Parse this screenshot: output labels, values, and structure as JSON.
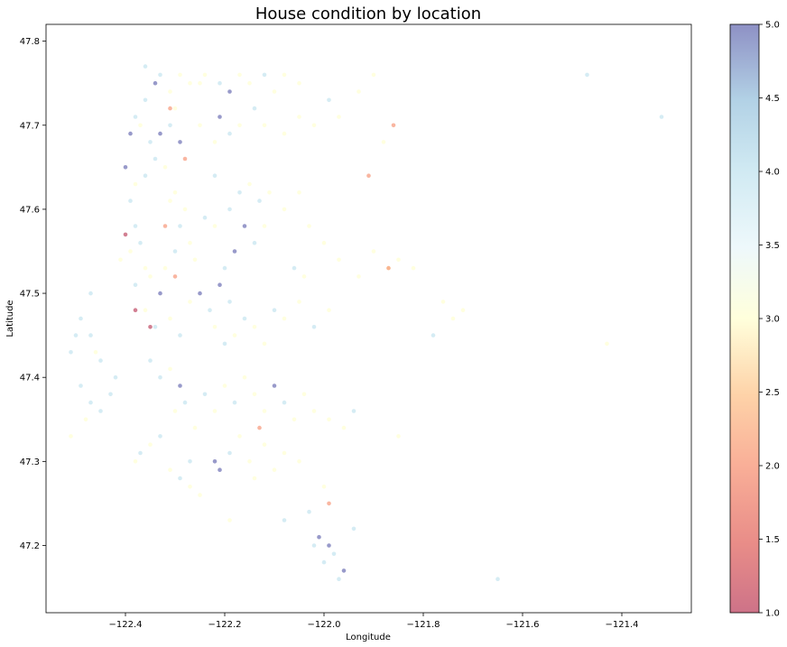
{
  "chart_data": {
    "type": "scatter",
    "title": "House condition by location",
    "xlabel": "Longitude",
    "ylabel": "Latitude",
    "xlim": [
      -122.56,
      -121.26
    ],
    "ylim": [
      47.12,
      47.82
    ],
    "xticks": [
      -122.4,
      -122.2,
      -122.0,
      -121.8,
      -121.6,
      -121.4
    ],
    "xtick_labels": [
      "−122.4",
      "−122.2",
      "−122.0",
      "−121.8",
      "−121.6",
      "−121.4"
    ],
    "yticks": [
      47.2,
      47.3,
      47.4,
      47.5,
      47.6,
      47.7,
      47.8
    ],
    "ytick_labels": [
      "47.2",
      "47.3",
      "47.4",
      "47.5",
      "47.6",
      "47.7",
      "47.8"
    ],
    "color_variable_range": [
      1.0,
      5.0
    ],
    "colormap": "RdYlBu",
    "colorbar": {
      "ticks": [
        1.0,
        1.5,
        2.0,
        2.5,
        3.0,
        3.5,
        4.0,
        4.5,
        5.0
      ],
      "tick_labels": [
        "1.0",
        "1.5",
        "2.0",
        "2.5",
        "3.0",
        "3.5",
        "4.0",
        "4.5",
        "5.0"
      ],
      "placement": "right"
    },
    "grid": false,
    "point_alpha": 0.5,
    "points": [
      [
        -122.36,
        47.77,
        4
      ],
      [
        -122.34,
        47.75,
        5
      ],
      [
        -122.33,
        47.76,
        4
      ],
      [
        -122.31,
        47.74,
        3
      ],
      [
        -122.29,
        47.76,
        3
      ],
      [
        -122.27,
        47.75,
        3
      ],
      [
        -122.24,
        47.76,
        3
      ],
      [
        -122.21,
        47.75,
        4
      ],
      [
        -122.19,
        47.74,
        5
      ],
      [
        -122.17,
        47.76,
        3
      ],
      [
        -122.15,
        47.75,
        3
      ],
      [
        -122.12,
        47.76,
        4
      ],
      [
        -122.1,
        47.74,
        3
      ],
      [
        -122.08,
        47.76,
        3
      ],
      [
        -122.05,
        47.75,
        3
      ],
      [
        -122.38,
        47.71,
        4
      ],
      [
        -122.39,
        47.69,
        5
      ],
      [
        -122.37,
        47.7,
        3
      ],
      [
        -122.35,
        47.68,
        4
      ],
      [
        -122.33,
        47.69,
        5
      ],
      [
        -122.31,
        47.7,
        4
      ],
      [
        -122.29,
        47.68,
        5
      ],
      [
        -122.3,
        47.72,
        3
      ],
      [
        -122.34,
        47.66,
        4
      ],
      [
        -122.4,
        47.65,
        5
      ],
      [
        -122.38,
        47.63,
        3
      ],
      [
        -122.36,
        47.64,
        4
      ],
      [
        -122.32,
        47.65,
        3
      ],
      [
        -122.3,
        47.62,
        3
      ],
      [
        -122.25,
        47.7,
        3
      ],
      [
        -122.21,
        47.71,
        5
      ],
      [
        -122.19,
        47.69,
        4
      ],
      [
        -122.22,
        47.68,
        3
      ],
      [
        -122.17,
        47.7,
        3
      ],
      [
        -122.14,
        47.72,
        4
      ],
      [
        -122.12,
        47.7,
        3
      ],
      [
        -122.08,
        47.69,
        3
      ],
      [
        -122.05,
        47.71,
        3
      ],
      [
        -122.02,
        47.7,
        3
      ],
      [
        -121.99,
        47.73,
        4
      ],
      [
        -121.97,
        47.71,
        3
      ],
      [
        -121.93,
        47.74,
        3
      ],
      [
        -121.9,
        47.76,
        3
      ],
      [
        -121.86,
        47.7,
        2
      ],
      [
        -121.88,
        47.68,
        3
      ],
      [
        -122.28,
        47.6,
        3
      ],
      [
        -122.29,
        47.58,
        4
      ],
      [
        -122.31,
        47.61,
        3
      ],
      [
        -122.27,
        47.56,
        3
      ],
      [
        -122.26,
        47.54,
        3
      ],
      [
        -122.3,
        47.55,
        4
      ],
      [
        -122.32,
        47.53,
        3
      ],
      [
        -122.24,
        47.59,
        4
      ],
      [
        -122.22,
        47.58,
        3
      ],
      [
        -122.19,
        47.6,
        4
      ],
      [
        -122.17,
        47.62,
        4
      ],
      [
        -122.15,
        47.63,
        3
      ],
      [
        -122.13,
        47.61,
        4
      ],
      [
        -122.11,
        47.62,
        3
      ],
      [
        -122.16,
        47.58,
        5
      ],
      [
        -122.14,
        47.56,
        4
      ],
      [
        -122.18,
        47.55,
        5
      ],
      [
        -122.2,
        47.53,
        4
      ],
      [
        -122.12,
        47.58,
        3
      ],
      [
        -122.08,
        47.6,
        3
      ],
      [
        -122.05,
        47.62,
        3
      ],
      [
        -122.03,
        47.58,
        3
      ],
      [
        -122.0,
        47.56,
        3
      ],
      [
        -122.06,
        47.53,
        4
      ],
      [
        -122.04,
        47.52,
        3
      ],
      [
        -121.97,
        47.54,
        3
      ],
      [
        -121.93,
        47.52,
        3
      ],
      [
        -121.9,
        47.55,
        3
      ],
      [
        -121.87,
        47.53,
        3
      ],
      [
        -121.85,
        47.54,
        3
      ],
      [
        -121.82,
        47.53,
        3
      ],
      [
        -121.76,
        47.49,
        3
      ],
      [
        -121.74,
        47.47,
        3
      ],
      [
        -121.72,
        47.48,
        3
      ],
      [
        -121.78,
        47.45,
        4
      ],
      [
        -122.38,
        47.58,
        4
      ],
      [
        -122.39,
        47.55,
        3
      ],
      [
        -122.37,
        47.56,
        4
      ],
      [
        -122.36,
        47.53,
        3
      ],
      [
        -122.38,
        47.51,
        4
      ],
      [
        -122.35,
        47.52,
        3
      ],
      [
        -122.33,
        47.5,
        5
      ],
      [
        -122.36,
        47.48,
        3
      ],
      [
        -122.34,
        47.46,
        4
      ],
      [
        -122.31,
        47.47,
        3
      ],
      [
        -122.29,
        47.45,
        4
      ],
      [
        -122.27,
        47.49,
        3
      ],
      [
        -122.25,
        47.5,
        5
      ],
      [
        -122.23,
        47.48,
        4
      ],
      [
        -122.21,
        47.51,
        5
      ],
      [
        -122.19,
        47.49,
        4
      ],
      [
        -122.22,
        47.46,
        3
      ],
      [
        -122.2,
        47.44,
        4
      ],
      [
        -122.18,
        47.45,
        3
      ],
      [
        -122.16,
        47.47,
        4
      ],
      [
        -122.14,
        47.46,
        3
      ],
      [
        -122.12,
        47.44,
        3
      ],
      [
        -122.1,
        47.48,
        4
      ],
      [
        -122.08,
        47.47,
        3
      ],
      [
        -122.05,
        47.49,
        3
      ],
      [
        -122.02,
        47.46,
        4
      ],
      [
        -121.99,
        47.48,
        3
      ],
      [
        -122.35,
        47.42,
        4
      ],
      [
        -122.33,
        47.4,
        4
      ],
      [
        -122.31,
        47.41,
        3
      ],
      [
        -122.29,
        47.39,
        5
      ],
      [
        -122.3,
        47.36,
        3
      ],
      [
        -122.28,
        47.37,
        4
      ],
      [
        -122.26,
        47.34,
        3
      ],
      [
        -122.24,
        47.38,
        4
      ],
      [
        -122.22,
        47.36,
        3
      ],
      [
        -122.2,
        47.39,
        3
      ],
      [
        -122.18,
        47.37,
        4
      ],
      [
        -122.16,
        47.4,
        3
      ],
      [
        -122.14,
        47.38,
        3
      ],
      [
        -122.12,
        47.36,
        3
      ],
      [
        -122.1,
        47.39,
        5
      ],
      [
        -122.08,
        47.37,
        4
      ],
      [
        -122.06,
        47.35,
        3
      ],
      [
        -122.04,
        47.38,
        3
      ],
      [
        -122.02,
        47.36,
        3
      ],
      [
        -121.99,
        47.35,
        3
      ],
      [
        -121.96,
        47.34,
        3
      ],
      [
        -121.94,
        47.36,
        4
      ],
      [
        -122.37,
        47.31,
        4
      ],
      [
        -122.38,
        47.3,
        3
      ],
      [
        -122.35,
        47.32,
        3
      ],
      [
        -122.33,
        47.33,
        4
      ],
      [
        -122.31,
        47.29,
        3
      ],
      [
        -122.29,
        47.28,
        4
      ],
      [
        -122.27,
        47.27,
        3
      ],
      [
        -122.25,
        47.26,
        3
      ],
      [
        -122.22,
        47.3,
        5
      ],
      [
        -122.21,
        47.29,
        5
      ],
      [
        -122.19,
        47.31,
        4
      ],
      [
        -122.17,
        47.33,
        3
      ],
      [
        -122.15,
        47.3,
        3
      ],
      [
        -122.12,
        47.32,
        3
      ],
      [
        -122.1,
        47.29,
        3
      ],
      [
        -122.08,
        47.31,
        3
      ],
      [
        -122.05,
        47.3,
        3
      ],
      [
        -122.03,
        47.24,
        4
      ],
      [
        -122.01,
        47.21,
        5
      ],
      [
        -121.99,
        47.2,
        5
      ],
      [
        -122.0,
        47.18,
        4
      ],
      [
        -121.98,
        47.19,
        4
      ],
      [
        -121.96,
        47.17,
        5
      ],
      [
        -122.02,
        47.2,
        4
      ],
      [
        -121.97,
        47.16,
        4
      ],
      [
        -122.47,
        47.5,
        4
      ],
      [
        -122.49,
        47.47,
        4
      ],
      [
        -122.47,
        47.45,
        4
      ],
      [
        -122.51,
        47.43,
        4
      ],
      [
        -122.5,
        47.45,
        4
      ],
      [
        -122.46,
        47.43,
        3
      ],
      [
        -122.45,
        47.42,
        4
      ],
      [
        -122.49,
        47.39,
        4
      ],
      [
        -122.47,
        47.37,
        4
      ],
      [
        -122.45,
        47.36,
        4
      ],
      [
        -122.43,
        47.38,
        4
      ],
      [
        -122.51,
        47.33,
        3
      ],
      [
        -122.48,
        47.35,
        3
      ],
      [
        -122.42,
        47.4,
        4
      ],
      [
        -122.32,
        47.58,
        2
      ],
      [
        -122.35,
        47.46,
        1
      ],
      [
        -122.3,
        47.52,
        2
      ],
      [
        -122.38,
        47.48,
        1
      ],
      [
        -122.41,
        47.54,
        3
      ],
      [
        -122.4,
        47.57,
        1
      ],
      [
        -122.28,
        47.66,
        2
      ],
      [
        -122.31,
        47.72,
        2
      ],
      [
        -122.22,
        47.64,
        4
      ],
      [
        -121.99,
        47.25,
        2
      ],
      [
        -121.94,
        47.22,
        4
      ],
      [
        -121.65,
        47.16,
        4
      ],
      [
        -121.47,
        47.76,
        4
      ],
      [
        -121.32,
        47.71,
        4
      ],
      [
        -121.43,
        47.44,
        3
      ],
      [
        -122.25,
        47.75,
        3
      ],
      [
        -122.13,
        47.34,
        2
      ],
      [
        -121.85,
        47.33,
        3
      ],
      [
        -121.91,
        47.64,
        2
      ],
      [
        -121.87,
        47.53,
        2
      ],
      [
        -122.39,
        47.61,
        4
      ],
      [
        -122.36,
        47.73,
        4
      ],
      [
        -122.27,
        47.3,
        4
      ],
      [
        -122.19,
        47.23,
        3
      ],
      [
        -122.08,
        47.23,
        4
      ],
      [
        -122.0,
        47.27,
        3
      ],
      [
        -122.14,
        47.28,
        3
      ]
    ]
  }
}
